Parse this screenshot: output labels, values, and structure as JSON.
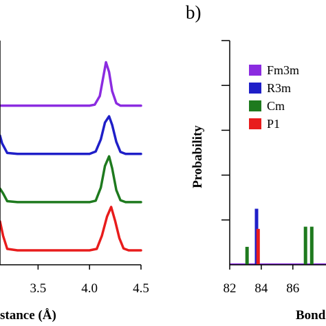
{
  "chart_data": [
    {
      "type": "line",
      "panel_label": "",
      "title": "",
      "xlabel": "stance (Å)",
      "ylabel": "",
      "xlim": [
        3.13,
        4.5
      ],
      "ylim": [
        -0.3,
        4.35
      ],
      "x_ticks": [
        3.5,
        4.0,
        4.5
      ],
      "x_tick_labels": [
        "3.5",
        "4.0",
        "4.5"
      ],
      "grid": false,
      "series": [
        {
          "color": "#8b2be0",
          "offset": 3.0,
          "x": [
            3.13,
            4.0,
            4.05,
            4.1,
            4.13,
            4.16,
            4.19,
            4.22,
            4.26,
            4.3,
            4.35,
            4.5
          ],
          "y": [
            0.0,
            0.0,
            0.02,
            0.2,
            0.55,
            0.9,
            0.7,
            0.3,
            0.05,
            0.0,
            0.0,
            0.0
          ]
        },
        {
          "color": "#1f1fc8",
          "offset": 2.0,
          "x": [
            3.13,
            3.15,
            3.2,
            3.3,
            4.0,
            4.06,
            4.11,
            4.15,
            4.19,
            4.22,
            4.26,
            4.3,
            4.35,
            4.5
          ],
          "y": [
            0.38,
            0.22,
            0.02,
            0.0,
            0.0,
            0.05,
            0.3,
            0.65,
            0.78,
            0.6,
            0.25,
            0.04,
            0.0,
            0.0
          ]
        },
        {
          "color": "#1e7a1e",
          "offset": 1.0,
          "x": [
            3.13,
            3.16,
            3.2,
            3.3,
            4.0,
            4.06,
            4.11,
            4.15,
            4.19,
            4.22,
            4.26,
            4.3,
            4.35,
            4.5
          ],
          "y": [
            0.28,
            0.18,
            0.02,
            0.0,
            0.0,
            0.03,
            0.3,
            0.75,
            0.95,
            0.7,
            0.25,
            0.04,
            0.0,
            0.0
          ]
        },
        {
          "color": "#e81c1c",
          "offset": 0.0,
          "x": [
            3.13,
            3.16,
            3.2,
            3.3,
            4.0,
            4.07,
            4.12,
            4.17,
            4.21,
            4.25,
            4.29,
            4.33,
            4.38,
            4.5
          ],
          "y": [
            0.6,
            0.3,
            0.03,
            0.0,
            0.0,
            0.03,
            0.3,
            0.7,
            0.9,
            0.6,
            0.25,
            0.04,
            0.0,
            0.0
          ]
        }
      ]
    },
    {
      "type": "bar",
      "panel_label": "b)",
      "title": "",
      "xlabel": "Bond",
      "ylabel": "Probability",
      "xlim": [
        82,
        88.1
      ],
      "ylim": [
        0,
        1.0
      ],
      "x_ticks": [
        82,
        84,
        86
      ],
      "x_tick_labels": [
        "82",
        "84",
        "86"
      ],
      "y_ticks": [
        0.2,
        0.4,
        0.6,
        0.8,
        1.0
      ],
      "grid": false,
      "legend": {
        "placement": "top-left"
      },
      "series": [
        {
          "name": "Fm3m",
          "color": "#8b2be0",
          "x": [],
          "values": []
        },
        {
          "name": "R3m",
          "color": "#1f1fc8",
          "x": [
            83.7
          ],
          "values": [
            0.25
          ]
        },
        {
          "name": "Cm",
          "color": "#1e7a1e",
          "x": [
            83.1,
            86.8,
            87.2
          ],
          "values": [
            0.08,
            0.17,
            0.17
          ]
        },
        {
          "name": "P1",
          "color": "#e81c1c",
          "x": [
            83.8
          ],
          "values": [
            0.16
          ]
        }
      ]
    }
  ]
}
